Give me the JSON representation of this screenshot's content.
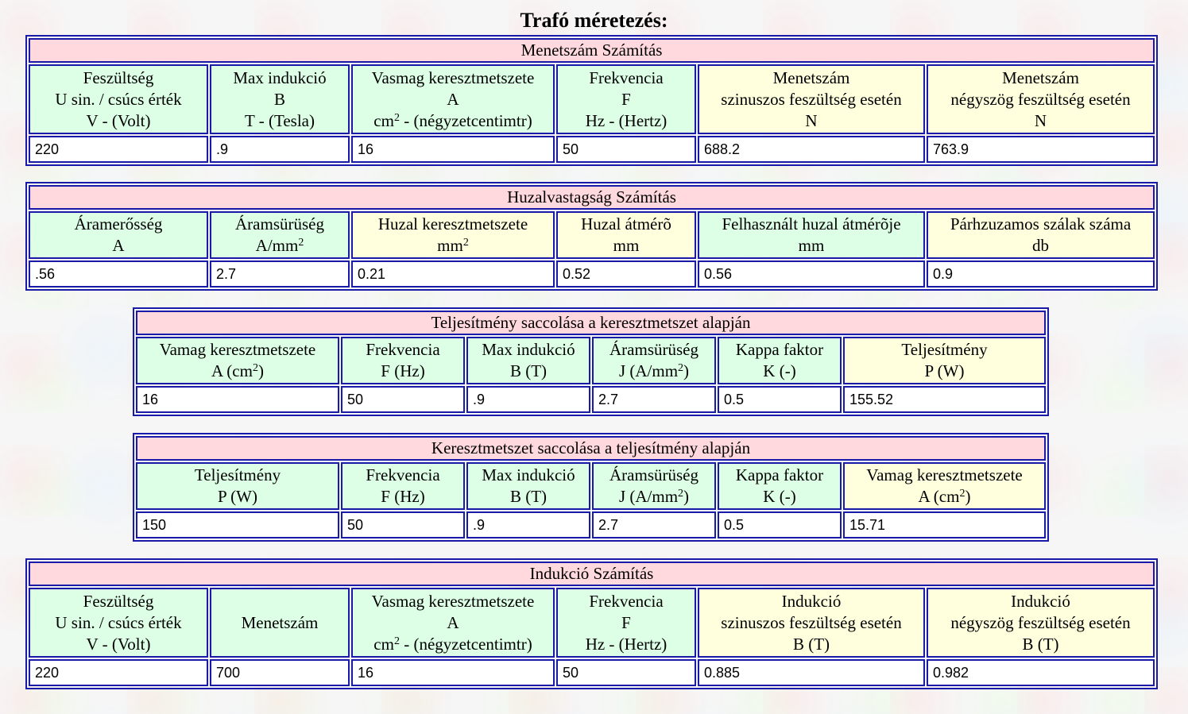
{
  "page_title": "Trafó méretezés:",
  "menetszam": {
    "title": "Menetszám Számítás",
    "headers": {
      "voltage": [
        "Feszültség",
        "U sin. / csúcs érték",
        "V - (Volt)"
      ],
      "induction": [
        "Max indukció",
        "B",
        "T - (Tesla)"
      ],
      "core": [
        "Vasmag keresztmetszete",
        "A",
        "cm",
        "2",
        " - (négyzetcentimtr)"
      ],
      "frequency": [
        "Frekvencia",
        "F",
        "Hz - (Hertz)"
      ],
      "turns_sin": [
        "Menetszám",
        "szinuszos feszültség esetén",
        "N"
      ],
      "turns_square": [
        "Menetszám",
        "négyszög feszültség esetén",
        "N"
      ]
    },
    "values": {
      "voltage": "220",
      "induction": ".9",
      "core": "16",
      "frequency": "50",
      "turns_sin": "688.2",
      "turns_square": "763.9"
    }
  },
  "huzal": {
    "title": "Huzalvastagság Számítás",
    "headers": {
      "current": [
        "Áramerősség",
        "A"
      ],
      "density": [
        "Áramsürüség",
        "A/mm",
        "2"
      ],
      "wire_area": [
        "Huzal keresztmetszete",
        "mm",
        "2"
      ],
      "wire_diameter": [
        "Huzal átmérõ",
        "mm"
      ],
      "used_diameter": [
        "Felhasznált huzal átmérõje",
        "mm"
      ],
      "parallel": [
        "Párhzuzamos szálak száma",
        "db"
      ]
    },
    "values": {
      "current": ".56",
      "density": "2.7",
      "wire_area": "0.21",
      "wire_diameter": "0.52",
      "used_diameter": "0.56",
      "parallel": "0.9"
    }
  },
  "teljesitmeny": {
    "title": "Teljesítmény saccolása a keresztmetszet alapján",
    "headers": {
      "core": [
        "Vamag keresztmetszete",
        "A (cm",
        "2",
        ")"
      ],
      "frequency": [
        "Frekvencia",
        "F (Hz)"
      ],
      "induction": [
        "Max indukció",
        "B (T)"
      ],
      "density": [
        "Áramsürüség",
        "J (A/mm",
        "2",
        ")"
      ],
      "kappa": [
        "Kappa faktor",
        "K (-)"
      ],
      "power": [
        "Teljesítmény",
        "P (W)"
      ]
    },
    "values": {
      "core": "16",
      "frequency": "50",
      "induction": ".9",
      "density": "2.7",
      "kappa": "0.5",
      "power": "155.52"
    }
  },
  "keresztmetszet": {
    "title": "Keresztmetszet saccolása a teljesítmény alapján",
    "headers": {
      "power": [
        "Teljesítmény",
        "P (W)"
      ],
      "frequency": [
        "Frekvencia",
        "F (Hz)"
      ],
      "induction": [
        "Max indukció",
        "B (T)"
      ],
      "density": [
        "Áramsürüség",
        "J (A/mm",
        "2",
        ")"
      ],
      "kappa": [
        "Kappa faktor",
        "K (-)"
      ],
      "core": [
        "Vamag keresztmetszete",
        "A (cm",
        "2",
        ")"
      ]
    },
    "values": {
      "power": "150",
      "frequency": "50",
      "induction": ".9",
      "density": "2.7",
      "kappa": "0.5",
      "core": "15.71"
    }
  },
  "indukcio": {
    "title": "Indukció Számítás",
    "headers": {
      "voltage": [
        "Feszültség",
        "U sin. / csúcs érték",
        "V - (Volt)"
      ],
      "turns": [
        "Menetszám"
      ],
      "core": [
        "Vasmag keresztmetszete",
        "A",
        "cm",
        "2",
        " - (négyzetcentimtr)"
      ],
      "frequency": [
        "Frekvencia",
        "F",
        "Hz - (Hertz)"
      ],
      "ind_sin": [
        "Indukció",
        "szinuszos feszültség esetén",
        "B (T)"
      ],
      "ind_square": [
        "Indukció",
        "négyszög feszültség esetén",
        "B (T)"
      ]
    },
    "values": {
      "voltage": "220",
      "turns": "700",
      "core": "16",
      "frequency": "50",
      "ind_sin": "0.885",
      "ind_square": "0.982"
    }
  }
}
